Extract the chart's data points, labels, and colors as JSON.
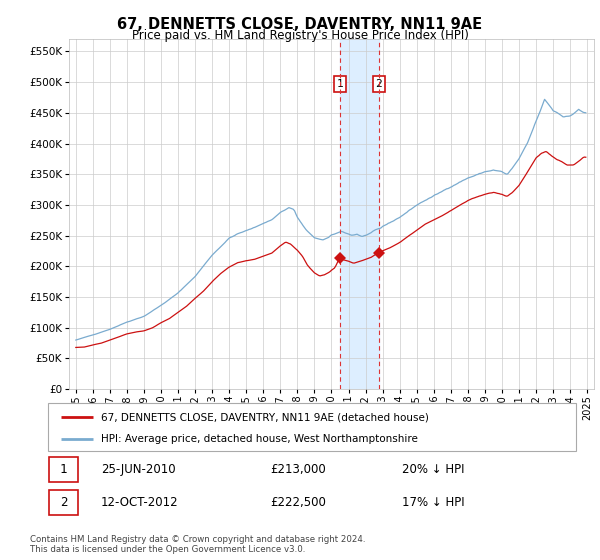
{
  "title": "67, DENNETTS CLOSE, DAVENTRY, NN11 9AE",
  "subtitle": "Price paid vs. HM Land Registry's House Price Index (HPI)",
  "ylim": [
    0,
    570000
  ],
  "yticks": [
    0,
    50000,
    100000,
    150000,
    200000,
    250000,
    300000,
    350000,
    400000,
    450000,
    500000,
    550000
  ],
  "sale1_date": 2010.48,
  "sale1_price": 213000,
  "sale2_date": 2012.78,
  "sale2_price": 222500,
  "hpi_color": "#7aabcf",
  "price_color": "#cc1111",
  "vspan_color": "#ddeeff",
  "vline_color": "#dd3333",
  "legend_entry1": "67, DENNETTS CLOSE, DAVENTRY, NN11 9AE (detached house)",
  "legend_entry2": "HPI: Average price, detached house, West Northamptonshire",
  "table_row1_date": "25-JUN-2010",
  "table_row1_price": "£213,000",
  "table_row1_hpi": "20% ↓ HPI",
  "table_row2_date": "12-OCT-2012",
  "table_row2_price": "£222,500",
  "table_row2_hpi": "17% ↓ HPI",
  "footer": "Contains HM Land Registry data © Crown copyright and database right 2024.\nThis data is licensed under the Open Government Licence v3.0."
}
